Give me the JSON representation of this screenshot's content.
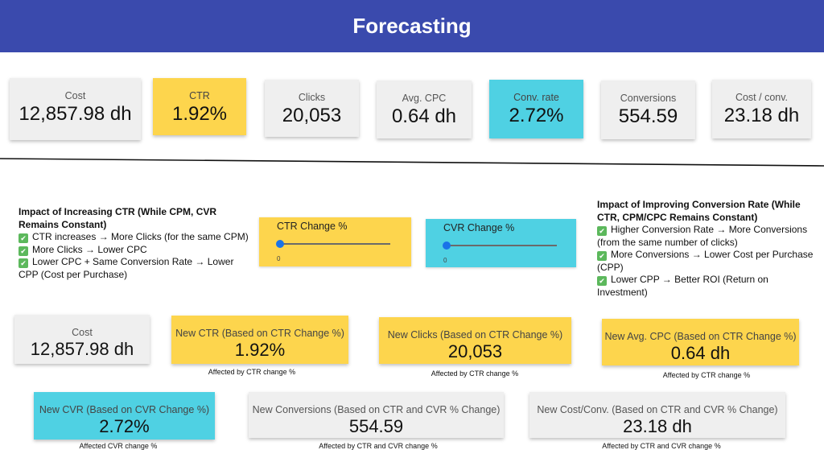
{
  "header": {
    "title": "Forecasting"
  },
  "top_cards": [
    {
      "label": "Cost",
      "value": "12,857.98 dh"
    },
    {
      "label": "CTR",
      "value": "1.92%"
    },
    {
      "label": "Clicks",
      "value": "20,053"
    },
    {
      "label": "Avg. CPC",
      "value": "0.64 dh"
    },
    {
      "label": "Conv. rate",
      "value": "2.72%"
    },
    {
      "label": "Conversions",
      "value": "554.59"
    },
    {
      "label": "Cost / conv.",
      "value": "23.18 dh"
    }
  ],
  "impact_ctr": {
    "title": "Impact of Increasing CTR (While CPM, CVR Remains Constant)",
    "items": [
      "CTR increases → More Clicks (for the same CPM)",
      "More Clicks → Lower CPC",
      "Lower CPC + Same Conversion Rate → Lower CPP (Cost per Purchase)"
    ]
  },
  "impact_cvr": {
    "title": "Impact of Improving Conversion Rate (While CTR, CPM/CPC Remains Constant)",
    "items": [
      "Higher Conversion Rate → More Conversions (from the same number of clicks)",
      "More Conversions → Lower Cost per Purchase (CPP)",
      "Lower CPP → Better ROI (Return on Investment)"
    ]
  },
  "sliders": {
    "ctr": {
      "label": "CTR Change %",
      "value": "0",
      "fraction": 0
    },
    "cvr": {
      "label": "CVR Change %",
      "value": "0",
      "fraction": 0
    }
  },
  "bottom_cards": {
    "cost": {
      "label": "Cost",
      "value": "12,857.98 dh"
    },
    "new_ctr": {
      "label": "New CTR (Based on CTR Change %)",
      "value": "1.92%",
      "note": "Affected by  CTR change %"
    },
    "new_clicks": {
      "label": "New Clicks (Based on CTR Change %)",
      "value": "20,053",
      "note": "Affected by  CTR change %"
    },
    "new_cpc": {
      "label": "New Avg. CPC (Based on CTR Change %)",
      "value": "0.64 dh",
      "note": "Affected by  CTR change %"
    },
    "new_cvr": {
      "label": "New CVR (Based on CVR Change %)",
      "value": "2.72%",
      "note": "Affected CVR change %"
    },
    "new_conversions": {
      "label": "New Conversions (Based on CTR and CVR % Change)",
      "value": "554.59",
      "note": "Affected by  CTR  and CVR change %"
    },
    "new_cost_conv": {
      "label": "New Cost/Conv. (Based on CTR and CVR % Change)",
      "value": "23.18 dh",
      "note": "Affected by  CTR  and CVR change %"
    }
  },
  "colors": {
    "header": "#3a4aad",
    "yellow": "#fdd54d",
    "cyan": "#4fd1e3",
    "grey": "#efefef",
    "check": "#5cb85c",
    "slider_thumb": "#1a73e8"
  }
}
